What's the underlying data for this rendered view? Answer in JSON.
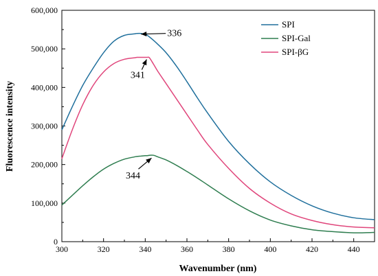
{
  "chart_data": {
    "type": "line",
    "xlabel": "Wavenumber (nm)",
    "ylabel": "Fluorescence intensity",
    "xlim": [
      300,
      450
    ],
    "ylim": [
      0,
      600000
    ],
    "x_ticks": [
      300,
      320,
      340,
      360,
      380,
      400,
      420,
      440
    ],
    "x_tick_labels": [
      "300",
      "320",
      "340",
      "360",
      "380",
      "400",
      "420",
      "440"
    ],
    "y_ticks": [
      0,
      100000,
      200000,
      300000,
      400000,
      500000,
      600000
    ],
    "y_tick_labels": [
      "0",
      "100,000",
      "200,000",
      "300,000",
      "400,000",
      "500,000",
      "600,000"
    ],
    "grid": false,
    "legend_position": "top-right",
    "x": [
      300,
      305,
      310,
      315,
      320,
      325,
      330,
      335,
      336,
      338,
      340,
      341,
      342,
      344,
      346,
      350,
      355,
      360,
      365,
      370,
      380,
      390,
      400,
      410,
      420,
      430,
      440,
      450
    ],
    "series": [
      {
        "name": "SPI",
        "color": "#1f6f9c",
        "values": [
          290000,
          350000,
          405000,
          450000,
          490000,
          520000,
          535000,
          539000,
          540000,
          540000,
          538000,
          535000,
          531000,
          522000,
          512000,
          490000,
          455000,
          415000,
          373000,
          333000,
          260000,
          202000,
          155000,
          120000,
          93000,
          74000,
          62000,
          57000
        ]
      },
      {
        "name": "SPI-Gal",
        "color": "#2e7d4f",
        "values": [
          95000,
          120000,
          145000,
          168000,
          188000,
          203000,
          214000,
          220000,
          221000,
          222000,
          223000,
          223000,
          224000,
          224000,
          220000,
          212000,
          198000,
          182000,
          165000,
          147000,
          111000,
          80000,
          56000,
          41000,
          31000,
          26000,
          23000,
          24000
        ]
      },
      {
        "name": "SPI-βG",
        "color": "#e0457b",
        "values": [
          215000,
          290000,
          355000,
          405000,
          440000,
          462000,
          473000,
          477000,
          478000,
          478000,
          478000,
          478000,
          477000,
          460000,
          442000,
          410000,
          370000,
          330000,
          290000,
          252000,
          190000,
          138000,
          100000,
          72000,
          55000,
          44000,
          38000,
          36000
        ]
      }
    ],
    "annotations": [
      {
        "text": "336",
        "series": 0,
        "x": 336,
        "y": 540000
      },
      {
        "text": "341",
        "series": 2,
        "x": 341,
        "y": 478000
      },
      {
        "text": "344",
        "series": 1,
        "x": 344,
        "y": 224000
      }
    ]
  }
}
